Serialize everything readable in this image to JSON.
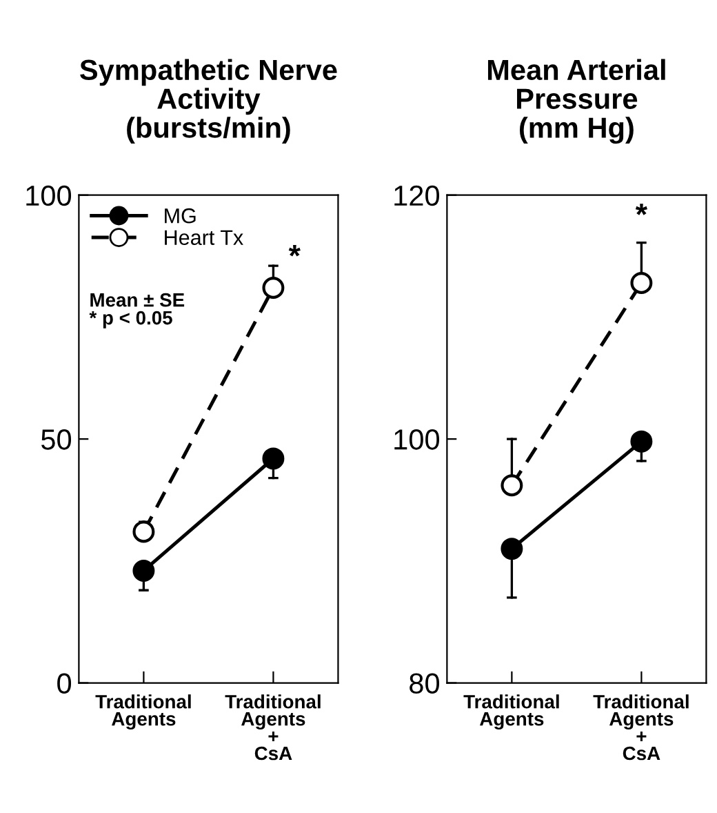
{
  "chart_data": [
    {
      "type": "line",
      "title": "Sympathetic Nerve\nActivity\n(bursts/min)",
      "categories": [
        "Traditional\nAgents",
        "Traditional\nAgents\n+\nCsA"
      ],
      "ylim": [
        0,
        100
      ],
      "yticks": [
        0,
        50,
        100
      ],
      "grid": false,
      "legend": "top left",
      "marker": "circle",
      "series": [
        {
          "name": "MG",
          "color": "#000000",
          "line_style": "solid",
          "values": [
            23,
            46
          ],
          "errors": [
            [
              19,
              23
            ],
            [
              42,
              46
            ]
          ]
        },
        {
          "name": "Heart Tx",
          "color": "#000000",
          "line_style": "dashed",
          "values": [
            31,
            81
          ],
          "errors": [
            [
              31,
              33
            ],
            [
              81,
              85.5
            ]
          ]
        }
      ],
      "annotations": [
        "Mean ± SE\n* p < 0.05",
        {
          "text": "*",
          "x": "Traditional\nAgents\n+\nCsA",
          "y": 85.5
        }
      ]
    },
    {
      "type": "line",
      "title": "Mean Arterial\nPressure\n(mm Hg)",
      "categories": [
        "Traditional\nAgents",
        "Traditional\nAgents\n+\nCsA"
      ],
      "ylim": [
        80,
        120
      ],
      "yticks": [
        80,
        100,
        120
      ],
      "grid": false,
      "legend": false,
      "marker": "circle",
      "series": [
        {
          "color": "#000000",
          "line_style": "solid",
          "values": [
            91,
            99.8
          ],
          "errors": [
            [
              87,
              91
            ],
            [
              98.2,
              99.8
            ]
          ]
        },
        {
          "color": "#000000",
          "line_style": "dashed",
          "values": [
            96.2,
            112.8
          ],
          "errors": [
            [
              96.2,
              100
            ],
            [
              112.8,
              116.1
            ]
          ]
        }
      ],
      "annotations": [
        {
          "text": "*",
          "x": "Traditional\nAgents\n+\nCsA",
          "y": 116.1
        }
      ]
    }
  ]
}
